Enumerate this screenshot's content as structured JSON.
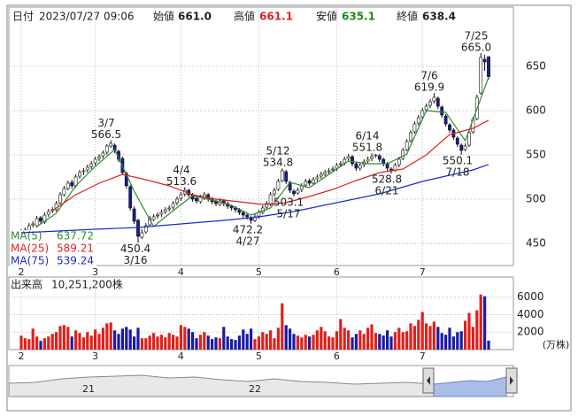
{
  "chart_data": {
    "type": "candlestick",
    "header": {
      "date_label": "日付",
      "date": "2023/07/27 09:06",
      "open_label": "始値",
      "open": {
        "value": 661,
        "label": "661.0"
      },
      "high_label": "高値",
      "high": {
        "value": 661.1,
        "label": "661.1"
      },
      "low_label": "安値",
      "low": {
        "value": 635.1,
        "label": "635.1"
      },
      "close_label": "終値",
      "close": {
        "value": 638.4,
        "label": "638.4"
      }
    },
    "xticks": [
      {
        "value": 0,
        "label": "2"
      },
      {
        "value": 19,
        "label": "3"
      },
      {
        "value": 41,
        "label": "4"
      },
      {
        "value": 61,
        "label": "5"
      },
      {
        "value": 81,
        "label": "6"
      },
      {
        "value": 103,
        "label": "7"
      }
    ],
    "ylim": [
      425,
      715
    ],
    "yticks": [
      450,
      500,
      550,
      600,
      650
    ],
    "grid": true,
    "up_color": "#ffffff",
    "down_color": "#1c1c8c",
    "candles": [
      [
        460,
        466,
        457,
        462
      ],
      [
        463,
        468,
        460,
        465
      ],
      [
        464,
        473,
        462,
        470
      ],
      [
        471,
        475,
        468,
        472
      ],
      [
        470,
        481,
        468,
        478
      ],
      [
        479,
        481,
        472,
        475
      ],
      [
        474,
        485,
        472,
        482
      ],
      [
        483,
        489,
        480,
        486
      ],
      [
        487,
        491,
        484,
        488
      ],
      [
        488,
        498,
        486,
        495
      ],
      [
        496,
        508,
        494,
        505
      ],
      [
        505,
        515,
        503,
        512
      ],
      [
        512,
        521,
        510,
        518
      ],
      [
        519,
        522,
        512,
        515
      ],
      [
        515,
        528,
        513,
        525
      ],
      [
        526,
        533,
        523,
        530
      ],
      [
        531,
        535,
        527,
        532
      ],
      [
        533,
        539,
        530,
        536
      ],
      [
        537,
        543,
        534,
        540
      ],
      [
        541,
        548,
        538,
        545
      ],
      [
        546,
        551,
        543,
        548
      ],
      [
        549,
        555,
        546,
        552
      ],
      [
        553,
        562,
        550,
        560
      ],
      [
        560,
        566.5,
        558,
        563
      ],
      [
        561,
        563,
        552,
        555
      ],
      [
        554,
        556,
        542,
        545
      ],
      [
        546,
        548,
        527,
        530
      ],
      [
        529,
        531,
        512,
        515
      ],
      [
        514,
        516,
        487,
        490
      ],
      [
        489,
        492,
        472,
        475
      ],
      [
        476,
        478,
        450.4,
        458
      ],
      [
        457,
        466,
        455,
        462
      ],
      [
        463,
        473,
        461,
        470
      ],
      [
        471,
        481,
        469,
        478
      ],
      [
        477,
        483,
        475,
        480
      ],
      [
        481,
        485,
        478,
        482
      ],
      [
        483,
        488,
        480,
        485
      ],
      [
        486,
        491,
        483,
        488
      ],
      [
        489,
        493,
        486,
        490
      ],
      [
        491,
        498,
        488,
        495
      ],
      [
        496,
        503,
        493,
        500
      ],
      [
        501,
        508,
        498,
        505
      ],
      [
        506,
        513.6,
        503,
        510
      ],
      [
        510,
        512,
        502,
        505
      ],
      [
        505,
        507,
        497,
        500
      ],
      [
        501,
        503,
        495,
        498
      ],
      [
        497,
        505,
        495,
        502
      ],
      [
        501,
        508,
        499,
        505
      ],
      [
        505,
        507,
        497,
        500
      ],
      [
        500,
        502,
        494,
        497
      ],
      [
        498,
        500,
        492,
        495
      ],
      [
        494,
        501,
        492,
        498
      ],
      [
        498,
        500,
        492,
        495
      ],
      [
        495,
        497,
        489,
        492
      ],
      [
        492,
        494,
        487,
        490
      ],
      [
        490,
        492,
        485,
        488
      ],
      [
        488,
        490,
        482,
        485
      ],
      [
        485,
        487,
        479,
        482
      ],
      [
        482,
        484,
        477,
        480
      ],
      [
        479,
        481,
        472.2,
        476
      ],
      [
        476,
        483,
        474,
        480
      ],
      [
        481,
        488,
        478,
        485
      ],
      [
        485,
        493,
        483,
        490
      ],
      [
        491,
        498,
        488,
        495
      ],
      [
        494,
        508,
        492,
        505
      ],
      [
        506,
        513,
        503,
        510
      ],
      [
        511,
        523,
        509,
        520
      ],
      [
        521,
        534.8,
        519,
        532
      ],
      [
        531,
        533,
        517,
        520
      ],
      [
        519,
        521,
        507,
        510
      ],
      [
        509,
        511,
        503.1,
        506
      ],
      [
        507,
        513,
        505,
        510
      ],
      [
        511,
        518,
        508,
        515
      ],
      [
        516,
        523,
        513,
        520
      ],
      [
        521,
        523,
        515,
        518
      ],
      [
        518,
        525,
        516,
        522
      ],
      [
        523,
        528,
        520,
        525
      ],
      [
        526,
        531,
        523,
        528
      ],
      [
        528,
        533,
        526,
        530
      ],
      [
        531,
        535,
        528,
        532
      ],
      [
        533,
        537,
        530,
        534
      ],
      [
        535,
        541,
        532,
        538
      ],
      [
        539,
        543,
        536,
        540
      ],
      [
        541,
        548,
        538,
        545
      ],
      [
        546,
        551,
        543,
        548
      ],
      [
        548,
        550,
        537,
        540
      ],
      [
        540,
        542,
        532,
        535
      ],
      [
        535,
        541,
        532,
        538
      ],
      [
        539,
        545,
        536,
        542
      ],
      [
        543,
        548,
        540,
        545
      ],
      [
        546,
        551.8,
        543,
        548
      ],
      [
        549,
        551,
        547,
        550
      ],
      [
        549,
        551,
        542,
        545
      ],
      [
        545,
        547,
        537,
        540
      ],
      [
        540,
        542,
        532,
        535
      ],
      [
        534,
        536,
        528.8,
        532
      ],
      [
        533,
        541,
        531,
        538
      ],
      [
        539,
        548,
        536,
        545
      ],
      [
        546,
        558,
        544,
        555
      ],
      [
        556,
        568,
        554,
        565
      ],
      [
        566,
        578,
        564,
        575
      ],
      [
        576,
        588,
        574,
        585
      ],
      [
        586,
        595,
        583,
        592
      ],
      [
        593,
        603,
        590,
        600
      ],
      [
        601,
        608,
        598,
        605
      ],
      [
        606,
        613,
        603,
        610
      ],
      [
        611,
        619.9,
        608,
        615
      ],
      [
        614,
        616,
        602,
        605
      ],
      [
        604,
        606,
        592,
        595
      ],
      [
        594,
        596,
        582,
        585
      ],
      [
        584,
        586,
        575,
        578
      ],
      [
        578,
        580,
        567,
        570
      ],
      [
        569,
        571,
        559,
        562
      ],
      [
        561,
        563,
        550.1,
        555
      ],
      [
        556,
        563,
        554,
        560
      ],
      [
        561,
        578,
        559,
        575
      ],
      [
        576,
        593,
        574,
        590
      ],
      [
        591,
        618,
        589,
        615
      ],
      [
        620,
        665,
        618,
        660
      ],
      [
        658,
        663,
        645,
        655
      ],
      [
        661,
        661.1,
        635.1,
        638.4
      ]
    ],
    "series": [
      {
        "name": "MA(5)",
        "color": "#2e8b2e",
        "x": [
          4,
          9,
          14,
          19,
          24,
          29,
          34,
          39,
          44,
          49,
          54,
          59,
          64,
          69,
          74,
          79,
          84,
          89,
          94,
          99,
          104,
          109,
          114,
          120
        ],
        "values": [
          469,
          484,
          515,
          537,
          556,
          509,
          469,
          487,
          504,
          499,
          493,
          482,
          490,
          519,
          513,
          528,
          543,
          540,
          540,
          551,
          600,
          598,
          566,
          637.72
        ]
      },
      {
        "name": "MA(25)",
        "color": "#e02020",
        "x": [
          8,
          14,
          20,
          26,
          32,
          38,
          44,
          50,
          56,
          62,
          68,
          74,
          80,
          86,
          92,
          98,
          104,
          110,
          116,
          120
        ],
        "values": [
          487,
          505,
          518,
          528,
          522,
          515,
          505,
          500,
          497,
          494,
          496,
          503,
          511,
          521,
          530,
          534,
          550,
          573,
          580,
          589.21
        ]
      },
      {
        "name": "MA(75)",
        "color": "#1a2ad0",
        "x": [
          0,
          19,
          30,
          41,
          52,
          61,
          70,
          81,
          92,
          103,
          110,
          116,
          120
        ],
        "values": [
          462,
          466,
          468,
          472,
          476,
          480,
          486,
          496,
          506,
          520,
          527,
          533,
          539.24
        ]
      }
    ],
    "annotations": [
      {
        "date": "3/7",
        "price": 566.5
      },
      {
        "date": "3/16",
        "price": 450.4
      },
      {
        "date": "4/4",
        "price": 513.6
      },
      {
        "date": "4/27",
        "price": 472.2
      },
      {
        "date": "5/12",
        "price": 534.8
      },
      {
        "date": "5/17",
        "price": 503.1
      },
      {
        "date": "6/14",
        "price": 551.8
      },
      {
        "date": "6/21",
        "price": 528.8
      },
      {
        "date": "7/6",
        "price": 619.9
      },
      {
        "date": "7/18",
        "price": 550.1
      },
      {
        "date": "7/25",
        "price": {
          "value": 665,
          "label": "665.0"
        }
      }
    ],
    "volume": {
      "title": "出来高",
      "total": {
        "value": 10251200,
        "label": "10,251,200株"
      },
      "unit": "(万株)",
      "ylim": [
        0,
        8300
      ],
      "yticks": [
        2000,
        4000,
        6000
      ],
      "up_color": "#e0201b",
      "down_color": "#1a1aa6",
      "values": [
        1600,
        1300,
        1200,
        2400,
        1500,
        1000,
        1300,
        1500,
        1800,
        2000,
        2700,
        2800,
        2600,
        1500,
        2200,
        1900,
        1400,
        2000,
        1600,
        2300,
        1800,
        2500,
        3000,
        3100,
        2200,
        1800,
        2400,
        2600,
        2300,
        1500,
        2500,
        1300,
        1300,
        1600,
        1900,
        1500,
        1700,
        1400,
        1900,
        1700,
        1500,
        2800,
        2600,
        2400,
        2000,
        1300,
        1700,
        2000,
        1600,
        1200,
        1400,
        1300,
        2600,
        1500,
        1200,
        1100,
        1600,
        2300,
        1800,
        2400,
        1200,
        1500,
        2000,
        1800,
        2200,
        1300,
        2500,
        5300,
        2800,
        2400,
        1800,
        1600,
        1400,
        1700,
        1500,
        1700,
        2200,
        2600,
        2100,
        1500,
        1400,
        2100,
        3500,
        2500,
        2200,
        1400,
        1800,
        2200,
        1800,
        2500,
        2900,
        1900,
        1800,
        1600,
        2200,
        1500,
        2000,
        2500,
        2000,
        2100,
        3000,
        2700,
        3400,
        4300,
        3000,
        2700,
        3200,
        2600,
        1900,
        1700,
        2500,
        1500,
        2000,
        2100,
        3300,
        4200,
        2600,
        4500,
        6300,
        6100,
        1025
      ]
    },
    "navigator": {
      "labels": [
        "21",
        "22"
      ]
    }
  }
}
